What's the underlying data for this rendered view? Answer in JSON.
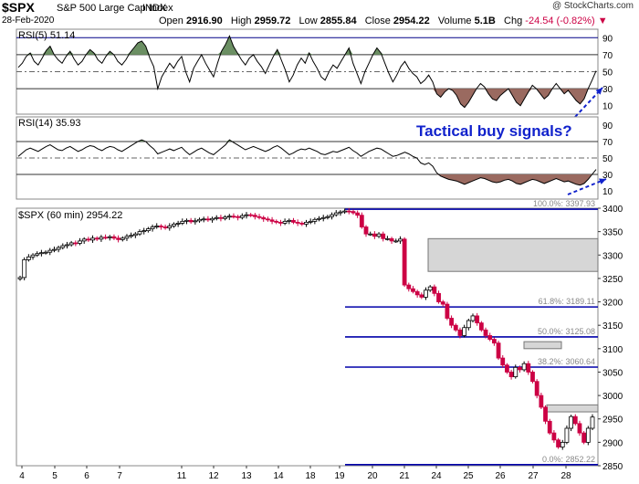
{
  "header": {
    "symbol": "$SPX",
    "name": "S&P 500 Large Cap Index",
    "exchange": "INDX",
    "date": "28-Feb-2020",
    "open_label": "Open",
    "open": "2916.90",
    "high_label": "High",
    "high": "2959.72",
    "low_label": "Low",
    "low": "2855.84",
    "close_label": "Close",
    "close": "2954.22",
    "volume_label": "Volume",
    "volume": "5.1B",
    "chg_label": "Chg",
    "chg": "-24.54 (-0.82%)",
    "credit": "@ StockCharts.com"
  },
  "annotation": "Tactical buy signals?",
  "colors": {
    "up": "#ffffff",
    "down": "#cc0044",
    "rsi_fill_up": "#6b8f63",
    "rsi_fill_down": "#9a6a60",
    "fib": "#0000aa",
    "arrow": "#1122cc"
  },
  "chart_data": [
    {
      "type": "line",
      "title": "RSI(5) 51.14",
      "ylim": [
        0,
        100
      ],
      "yticks": [
        10,
        30,
        50,
        70,
        90
      ],
      "reference_lines": [
        30,
        50,
        70,
        90
      ],
      "values": [
        55,
        60,
        68,
        72,
        62,
        58,
        66,
        75,
        80,
        70,
        64,
        60,
        68,
        74,
        65,
        58,
        62,
        70,
        76,
        72,
        64,
        60,
        68,
        74,
        70,
        62,
        58,
        64,
        72,
        78,
        84,
        86,
        80,
        66,
        56,
        30,
        44,
        52,
        60,
        54,
        62,
        68,
        50,
        38,
        54,
        62,
        70,
        60,
        52,
        44,
        60,
        74,
        82,
        92,
        80,
        72,
        64,
        58,
        66,
        70,
        62,
        56,
        48,
        58,
        68,
        76,
        64,
        52,
        38,
        46,
        58,
        66,
        60,
        72,
        62,
        54,
        44,
        40,
        50,
        58,
        54,
        62,
        70,
        78,
        60,
        48,
        36,
        50,
        60,
        70,
        78,
        72,
        60,
        48,
        38,
        46,
        56,
        62,
        54,
        48,
        44,
        36,
        40,
        46,
        38,
        24,
        20,
        26,
        30,
        28,
        22,
        12,
        8,
        14,
        22,
        30,
        36,
        32,
        24,
        18,
        16,
        22,
        26,
        30,
        22,
        14,
        10,
        18,
        26,
        34,
        30,
        24,
        18,
        22,
        30,
        36,
        30,
        24,
        28,
        22,
        16,
        12,
        18,
        30,
        40,
        51
      ]
    },
    {
      "type": "line",
      "title": "RSI(14) 35.93",
      "ylim": [
        0,
        100
      ],
      "yticks": [
        10,
        30,
        50,
        70,
        90
      ],
      "reference_lines": [
        30,
        50,
        70
      ],
      "values": [
        52,
        56,
        60,
        62,
        60,
        58,
        61,
        64,
        66,
        63,
        60,
        59,
        62,
        64,
        61,
        58,
        60,
        63,
        65,
        64,
        61,
        59,
        62,
        64,
        63,
        60,
        58,
        61,
        64,
        67,
        70,
        72,
        70,
        65,
        61,
        55,
        57,
        59,
        61,
        59,
        61,
        63,
        58,
        54,
        57,
        60,
        62,
        59,
        56,
        54,
        58,
        62,
        66,
        72,
        69,
        66,
        63,
        60,
        62,
        64,
        62,
        60,
        58,
        60,
        63,
        65,
        62,
        58,
        54,
        56,
        59,
        61,
        60,
        62,
        60,
        58,
        55,
        54,
        56,
        58,
        57,
        59,
        61,
        63,
        59,
        56,
        52,
        55,
        58,
        60,
        62,
        61,
        58,
        55,
        52,
        53,
        55,
        57,
        55,
        52,
        50,
        44,
        42,
        44,
        40,
        32,
        28,
        26,
        24,
        23,
        22,
        20,
        18,
        20,
        22,
        24,
        26,
        25,
        23,
        21,
        20,
        21,
        23,
        24,
        22,
        19,
        18,
        20,
        22,
        24,
        23,
        21,
        19,
        21,
        23,
        25,
        23,
        21,
        22,
        20,
        18,
        17,
        19,
        24,
        30,
        36
      ]
    },
    {
      "type": "candlestick",
      "title": "$SPX (60 min) 2954.22",
      "ylim": [
        2850,
        3400
      ],
      "yticks": [
        2850,
        2900,
        2950,
        3000,
        3050,
        3100,
        3150,
        3200,
        3250,
        3300,
        3350,
        3400
      ],
      "x_tick_labels": [
        "4",
        "5",
        "6",
        "7",
        "11",
        "12",
        "13",
        "14",
        "18",
        "19",
        "20",
        "21",
        "24",
        "25",
        "26",
        "27",
        "28"
      ],
      "annotations": [
        {
          "text": "100.0%: 3397.93",
          "value": 3397.93
        },
        {
          "text": "61.8%: 3189.11",
          "value": 3189.11
        },
        {
          "text": "50.0%: 3125.08",
          "value": 3125.08
        },
        {
          "text": "38.2%: 3060.64",
          "value": 3060.64
        },
        {
          "text": "0.0%: 2852.22",
          "value": 2852.22
        }
      ],
      "resistance_zones": [
        [
          3265,
          3335
        ],
        [
          3100,
          3115
        ],
        [
          2965,
          2980
        ]
      ],
      "closes": [
        3252,
        3290,
        3296,
        3300,
        3303,
        3305,
        3306,
        3310,
        3312,
        3316,
        3320,
        3322,
        3326,
        3325,
        3330,
        3334,
        3332,
        3336,
        3334,
        3338,
        3337,
        3339,
        3336,
        3333,
        3336,
        3340,
        3342,
        3345,
        3350,
        3352,
        3356,
        3360,
        3362,
        3360,
        3358,
        3362,
        3366,
        3368,
        3372,
        3374,
        3371,
        3373,
        3376,
        3377,
        3375,
        3378,
        3380,
        3378,
        3381,
        3383,
        3382,
        3380,
        3384,
        3386,
        3385,
        3382,
        3380,
        3377,
        3375,
        3372,
        3370,
        3368,
        3372,
        3374,
        3370,
        3368,
        3366,
        3370,
        3372,
        3376,
        3378,
        3380,
        3382,
        3386,
        3390,
        3392,
        3394,
        3393,
        3390,
        3385,
        3360,
        3345,
        3345,
        3340,
        3345,
        3335,
        3335,
        3330,
        3330,
        3334,
        3236,
        3228,
        3222,
        3215,
        3210,
        3225,
        3232,
        3218,
        3200,
        3195,
        3165,
        3150,
        3140,
        3128,
        3145,
        3160,
        3170,
        3155,
        3140,
        3128,
        3120,
        3112,
        3080,
        3065,
        3050,
        3040,
        3060,
        3055,
        3068,
        3050,
        3030,
        3000,
        2975,
        2945,
        2920,
        2905,
        2890,
        2900,
        2930,
        2955,
        2940,
        2920,
        2900,
        2930,
        2954
      ]
    }
  ]
}
